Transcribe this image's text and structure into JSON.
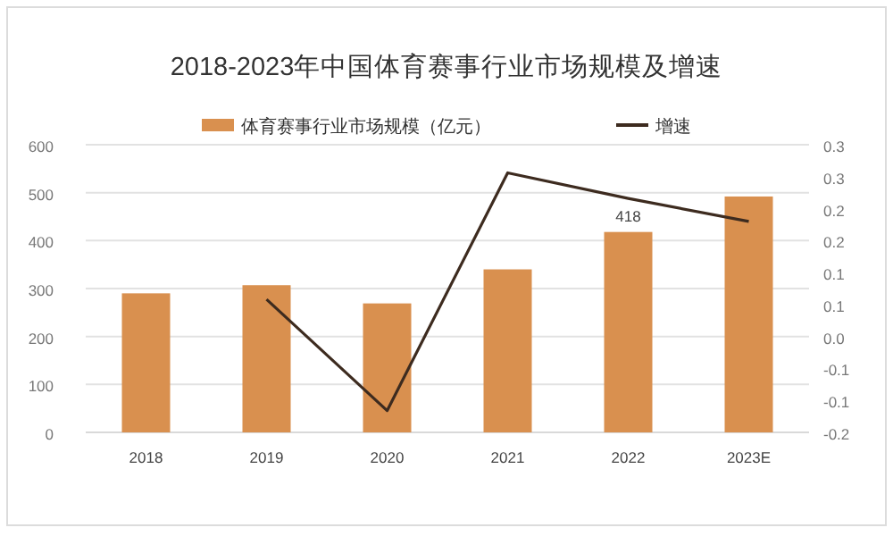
{
  "chart_data": {
    "type": "bar",
    "title": "2018-2023年中国体育赛事行业市场规模及增速",
    "categories": [
      "2018",
      "2019",
      "2020",
      "2021",
      "2022",
      "2023E"
    ],
    "series": [
      {
        "name": "体育赛事行业市场规模（亿元）",
        "color": "#d9904f",
        "values": [
          290,
          307,
          269,
          340,
          418,
          492
        ],
        "value_labels": [
          null,
          null,
          null,
          null,
          "418",
          null
        ]
      },
      {
        "name": "增速",
        "type": "line",
        "axis": "y2",
        "color": "#3d2b1f",
        "values": [
          null,
          0.058,
          -0.116,
          0.256,
          0.216,
          0.18
        ]
      }
    ],
    "ylim": [
      0,
      600
    ],
    "yticks": [
      0,
      100,
      200,
      300,
      400,
      500,
      600
    ],
    "y2lim": [
      -0.15,
      0.3
    ],
    "y2ticks": [
      {
        "value": -0.15,
        "label": "-0.2"
      },
      {
        "value": -0.1,
        "label": "-0.1"
      },
      {
        "value": -0.05,
        "label": "-0.1"
      },
      {
        "value": 0,
        "label": "0.0"
      },
      {
        "value": 0.05,
        "label": "0.1"
      },
      {
        "value": 0.1,
        "label": "0.1"
      },
      {
        "value": 0.15,
        "label": "0.2"
      },
      {
        "value": 0.2,
        "label": "0.2"
      },
      {
        "value": 0.25,
        "label": "0.3"
      },
      {
        "value": 0.3,
        "label": "0.3"
      }
    ],
    "grid": "y",
    "legend": "top"
  }
}
